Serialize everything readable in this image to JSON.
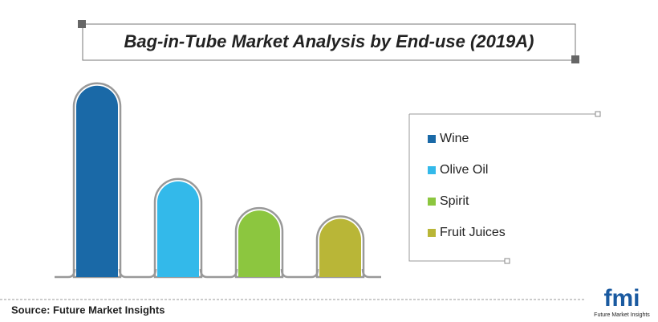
{
  "chart_data": {
    "type": "bar",
    "title": "Bag-in-Tube Market Analysis by End-use (2019A)",
    "categories": [
      "Wine",
      "Olive Oil",
      "Spirit",
      "Fruit Juices"
    ],
    "values": [
      46,
      23,
      16,
      14
    ],
    "colors": [
      "#1a69a7",
      "#33b9ea",
      "#8cc63f",
      "#b9b637"
    ],
    "ylim": [
      0,
      50
    ],
    "legend": "right"
  },
  "source": "Source: Future Market Insights",
  "logo": {
    "text": "fmi",
    "subtext": "Future Market Insights"
  }
}
